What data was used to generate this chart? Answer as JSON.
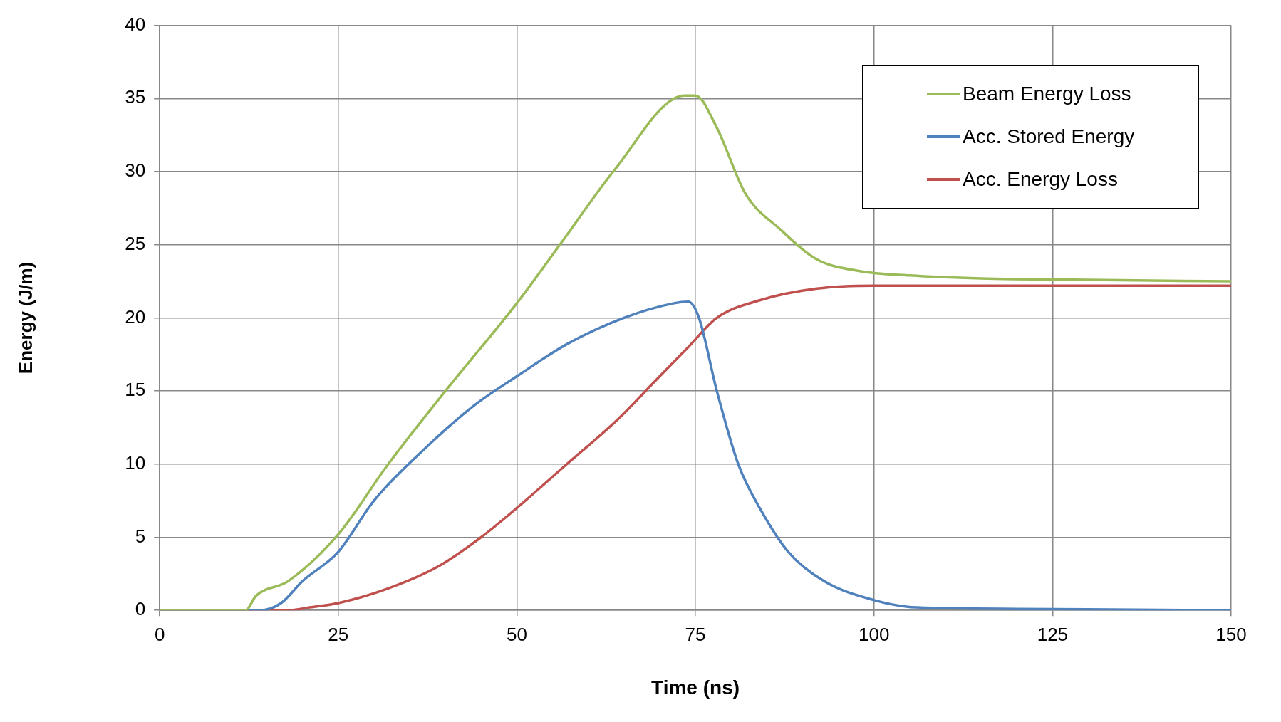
{
  "chart_data": {
    "type": "line",
    "xlabel": "Time (ns)",
    "ylabel": "Energy (J/m)",
    "xlim": [
      0,
      150
    ],
    "xticks": [
      0,
      25,
      50,
      75,
      100,
      125,
      150
    ],
    "ylim": [
      0,
      40
    ],
    "yticks": [
      0,
      5,
      10,
      15,
      20,
      25,
      30,
      35,
      40
    ],
    "grid": true,
    "legend": "top right",
    "marker": "none",
    "line_style": "solid",
    "series": [
      {
        "name": "Beam Energy Loss",
        "color": "#9bbb59",
        "x": [
          0,
          12,
          13.5,
          18,
          25,
          32,
          40,
          50,
          57.5,
          63.5,
          73.5,
          75,
          78,
          82,
          87,
          92,
          98,
          105,
          115,
          130,
          150
        ],
        "values": [
          0,
          0,
          1,
          2,
          5.2,
          10,
          15,
          21,
          26,
          30,
          35.2,
          35.2,
          33,
          28.5,
          26,
          24,
          23.2,
          22.9,
          22.7,
          22.6,
          22.5
        ]
      },
      {
        "name": "Acc. Stored Energy",
        "color": "#4f81bd",
        "x": [
          0,
          14,
          17,
          20,
          25,
          30,
          37,
          44,
          50,
          57,
          65,
          72,
          74,
          75.5,
          78,
          81,
          84,
          88,
          93,
          100,
          106,
          120,
          150
        ],
        "values": [
          0,
          0,
          0.5,
          2,
          4,
          7.5,
          11,
          14,
          16,
          18.2,
          20,
          21,
          21.1,
          20,
          15,
          10,
          7,
          4,
          2,
          0.7,
          0.2,
          0.1,
          0
        ]
      },
      {
        "name": "Acc. Energy Loss",
        "color": "#c0504d",
        "x": [
          0,
          18,
          21,
          25,
          32,
          39,
          45,
          50,
          57,
          64,
          70,
          74,
          78,
          84,
          92,
          100,
          150
        ],
        "values": [
          0,
          0,
          0.2,
          0.5,
          1.5,
          3,
          5,
          7,
          10,
          13,
          16,
          18,
          20,
          21.2,
          22,
          22.2,
          22.2
        ]
      }
    ]
  }
}
